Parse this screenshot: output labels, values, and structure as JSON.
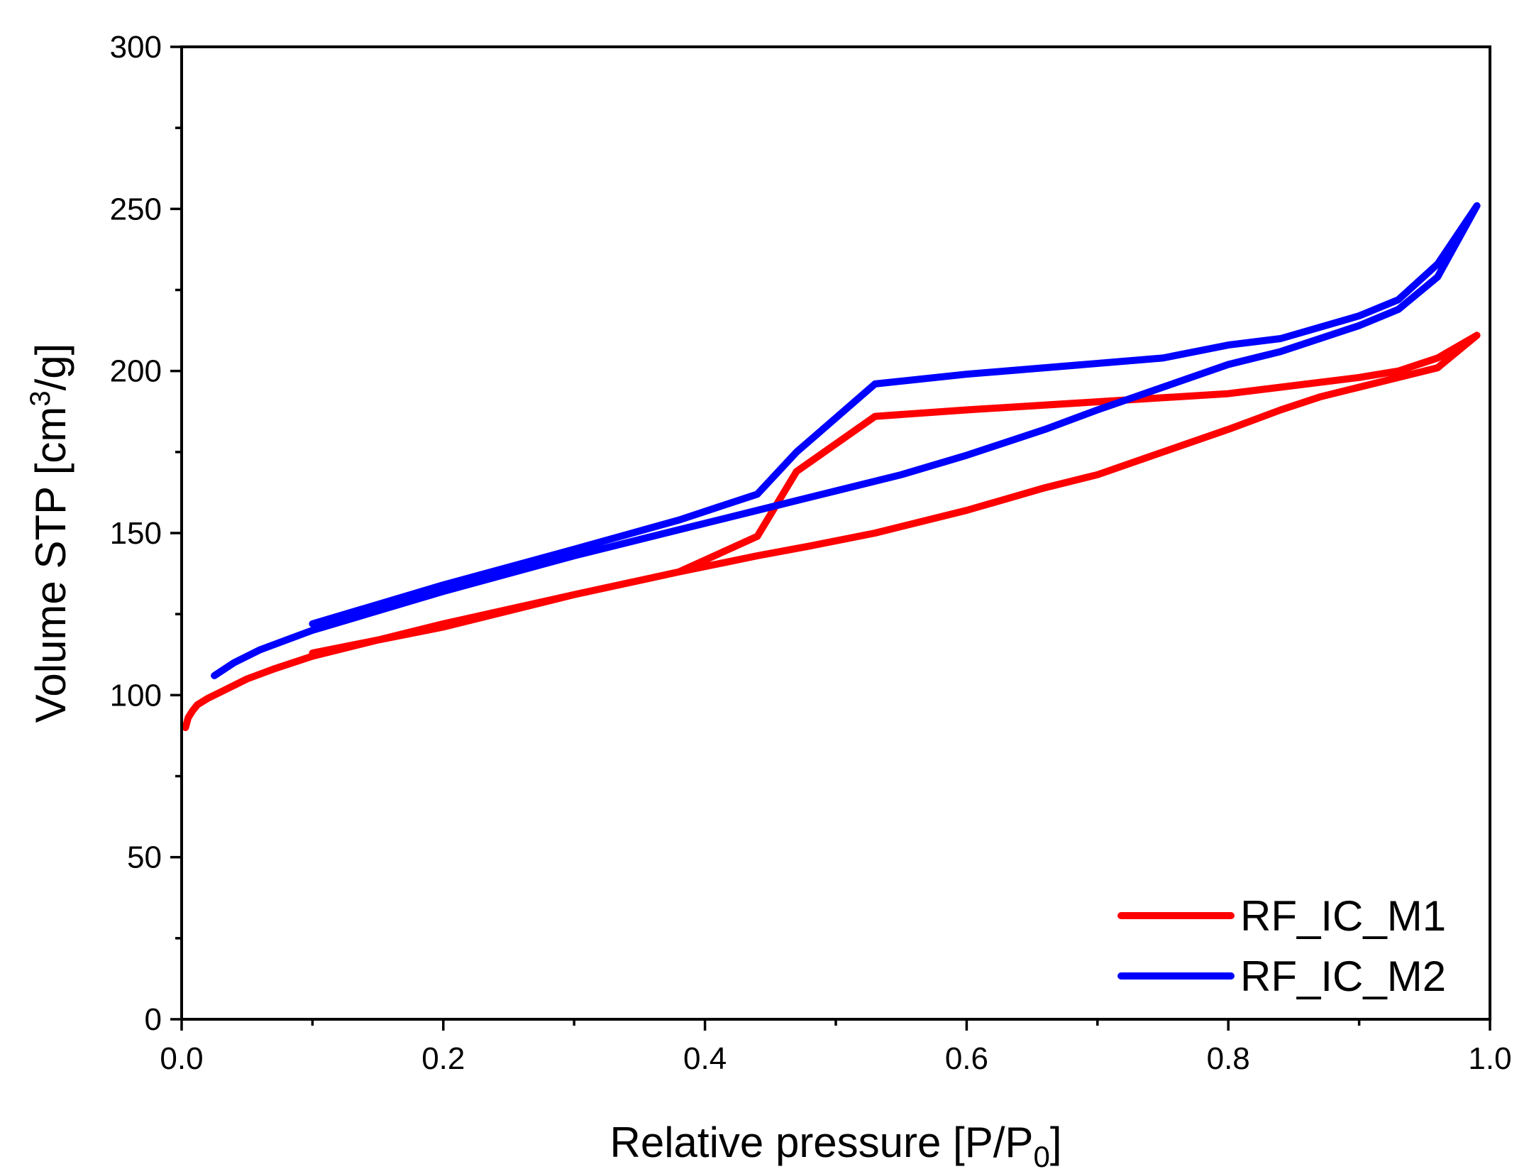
{
  "chart_data": {
    "type": "line",
    "title": "",
    "xlabel": "Relative pressure [P/P0]",
    "xlabel_parts": {
      "main": "Relative pressure [P/P",
      "sub": "0",
      "tail": "]"
    },
    "ylabel": "Volume STP [cm3/g]",
    "ylabel_parts": {
      "main": "Volume STP [cm",
      "sup": "3",
      "tail": "/g]"
    },
    "xlim": [
      0.0,
      1.0
    ],
    "ylim": [
      0,
      300
    ],
    "xticks": [
      0.0,
      0.2,
      0.4,
      0.6,
      0.8,
      1.0
    ],
    "xtick_labels": [
      "0.0",
      "0.2",
      "0.4",
      "0.6",
      "0.8",
      "1.0"
    ],
    "yticks": [
      0,
      50,
      100,
      150,
      200,
      250,
      300
    ],
    "ytick_labels": [
      "0",
      "50",
      "100",
      "150",
      "200",
      "250",
      "300"
    ],
    "x_minor_step": 0.1,
    "y_minor_step": 25,
    "legend_position": "bottom-right",
    "series": [
      {
        "name": "RF_IC_M1",
        "color": "#ff0000",
        "x": [
          0.003,
          0.005,
          0.008,
          0.012,
          0.02,
          0.03,
          0.04,
          0.05,
          0.07,
          0.1,
          0.15,
          0.2,
          0.3,
          0.38,
          0.44,
          0.48,
          0.53,
          0.6,
          0.66,
          0.7,
          0.75,
          0.8,
          0.84,
          0.87,
          0.9,
          0.93,
          0.96,
          0.99,
          0.96,
          0.93,
          0.9,
          0.84,
          0.8,
          0.72,
          0.6,
          0.53,
          0.47,
          0.44,
          0.38,
          0.3,
          0.2,
          0.15,
          0.1
        ],
        "y": [
          90,
          93,
          95,
          97,
          99,
          101,
          103,
          105,
          108,
          112,
          117,
          122,
          131,
          138,
          143,
          146,
          150,
          157,
          164,
          168,
          175,
          182,
          188,
          192,
          195,
          198,
          201,
          211,
          204,
          200,
          198,
          195,
          193,
          191,
          188,
          186,
          169,
          149,
          138,
          131,
          121,
          117,
          113
        ]
      },
      {
        "name": "RF_IC_M2",
        "color": "#0000ff",
        "x": [
          0.025,
          0.04,
          0.06,
          0.08,
          0.1,
          0.15,
          0.2,
          0.3,
          0.38,
          0.44,
          0.5,
          0.55,
          0.6,
          0.66,
          0.7,
          0.75,
          0.8,
          0.84,
          0.87,
          0.9,
          0.93,
          0.96,
          0.99,
          0.96,
          0.93,
          0.9,
          0.84,
          0.8,
          0.75,
          0.6,
          0.53,
          0.47,
          0.44,
          0.38,
          0.3,
          0.2,
          0.15,
          0.1
        ],
        "y": [
          106,
          110,
          114,
          117,
          120,
          126,
          132,
          143,
          151,
          157,
          163,
          168,
          174,
          182,
          188,
          195,
          202,
          206,
          210,
          214,
          219,
          229,
          251,
          233,
          222,
          217,
          210,
          208,
          204,
          199,
          196,
          175,
          162,
          154,
          145,
          134,
          128,
          122
        ]
      }
    ]
  }
}
